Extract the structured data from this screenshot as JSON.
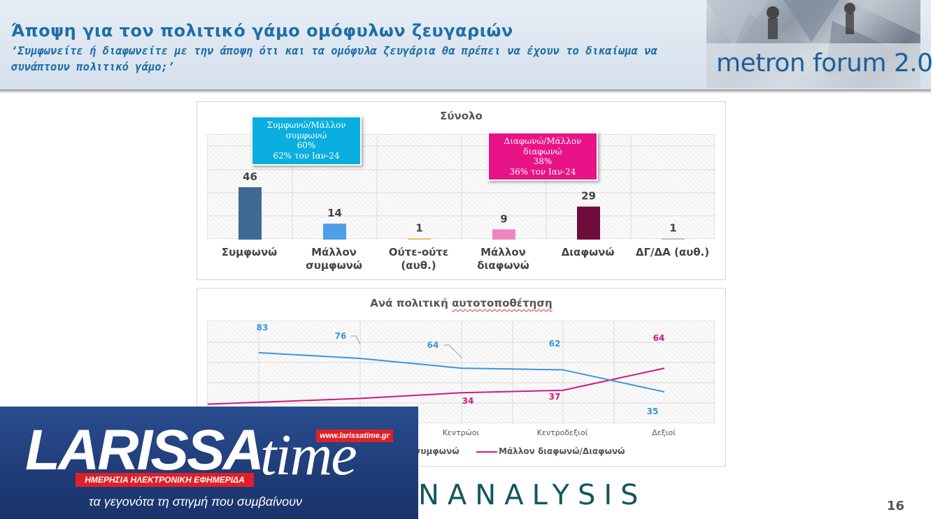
{
  "header": {
    "title": "Άποψη για τον πολιτικό γάμο ομόφυλων ζευγαριών",
    "subtitle": "‘Συμφωνείτε ή διαφωνείτε με την άποψη ότι και τα ομόφυλα ζευγάρια θα πρέπει να έχουν το δικαίωμα να συνάπτουν πολιτικό γάμο;’",
    "logo_text": "metron forum 2.0"
  },
  "callouts": {
    "agree": [
      "Συμφωνώ/Μάλλον",
      "συμφωνώ",
      "60%",
      "62% τον Ιαν-24"
    ],
    "disagree": [
      "Διαφωνώ/Μάλλον",
      "διαφωνώ",
      "38%",
      "36% τον Ιαν-24"
    ]
  },
  "colors": {
    "header_text": "#1d6fa7",
    "callout_agree": "#0aaedf",
    "callout_disagree": "#e81387",
    "series_agree": "#3a96db",
    "series_disagree": "#d11a7c"
  },
  "chart_data": [
    {
      "type": "bar",
      "title": "Σύνολο",
      "categories": [
        [
          "Συμφωνώ"
        ],
        [
          "Μάλλον",
          "συμφωνώ"
        ],
        [
          "Ούτε-ούτε",
          "(αυθ.)"
        ],
        [
          "Μάλλον",
          "διαφωνώ"
        ],
        [
          "Διαφωνώ"
        ],
        [
          "ΔΓ/ΔΑ (αυθ.)"
        ]
      ],
      "values": [
        46,
        14,
        1,
        9,
        29,
        1
      ],
      "colors": [
        "#3e6a94",
        "#4da0e6",
        "#f2b14a",
        "#ec86bf",
        "#6e0c3c",
        "#b8b8b8"
      ],
      "ylim": [
        0,
        46
      ],
      "grid": true
    },
    {
      "type": "line",
      "title": "Ανά πολιτική αυτοτοποθέτηση",
      "categories": [
        "",
        "",
        "Κεντρώοι",
        "Κεντροδεξιοί",
        "Δεξιοί"
      ],
      "series": [
        {
          "name": "Συμφωνώ/Μάλλον συμφωνώ",
          "values": [
            83,
            76,
            64,
            62,
            35
          ],
          "color": "#3a96db"
        },
        {
          "name": "Μάλλον διαφωνώ/Διαφωνώ",
          "values": [
            null,
            null,
            34,
            37,
            64
          ],
          "color": "#d11a7c"
        }
      ],
      "ylim": [
        0,
        100
      ],
      "grid": true,
      "legend": "bottom"
    }
  ],
  "legend_visible": [
    "συμφωνώ",
    "Μάλλον διαφωνώ/Διαφωνώ"
  ],
  "footer": {
    "larissa_main": "LARISSA",
    "larissa_time": "time",
    "larissa_url": "www.larissatime.gr",
    "larissa_band": "ΗΜΕΡΗΣΙΑ ΗΛΕΚΤΡΟΝΙΚΗ ΕΦΗΜΕΡΙΔΑ",
    "larissa_tagline": "τα γεγονότα τη στιγμή που συμβαίνουν",
    "analysis": "NANALYSIS",
    "page_number": "16"
  }
}
